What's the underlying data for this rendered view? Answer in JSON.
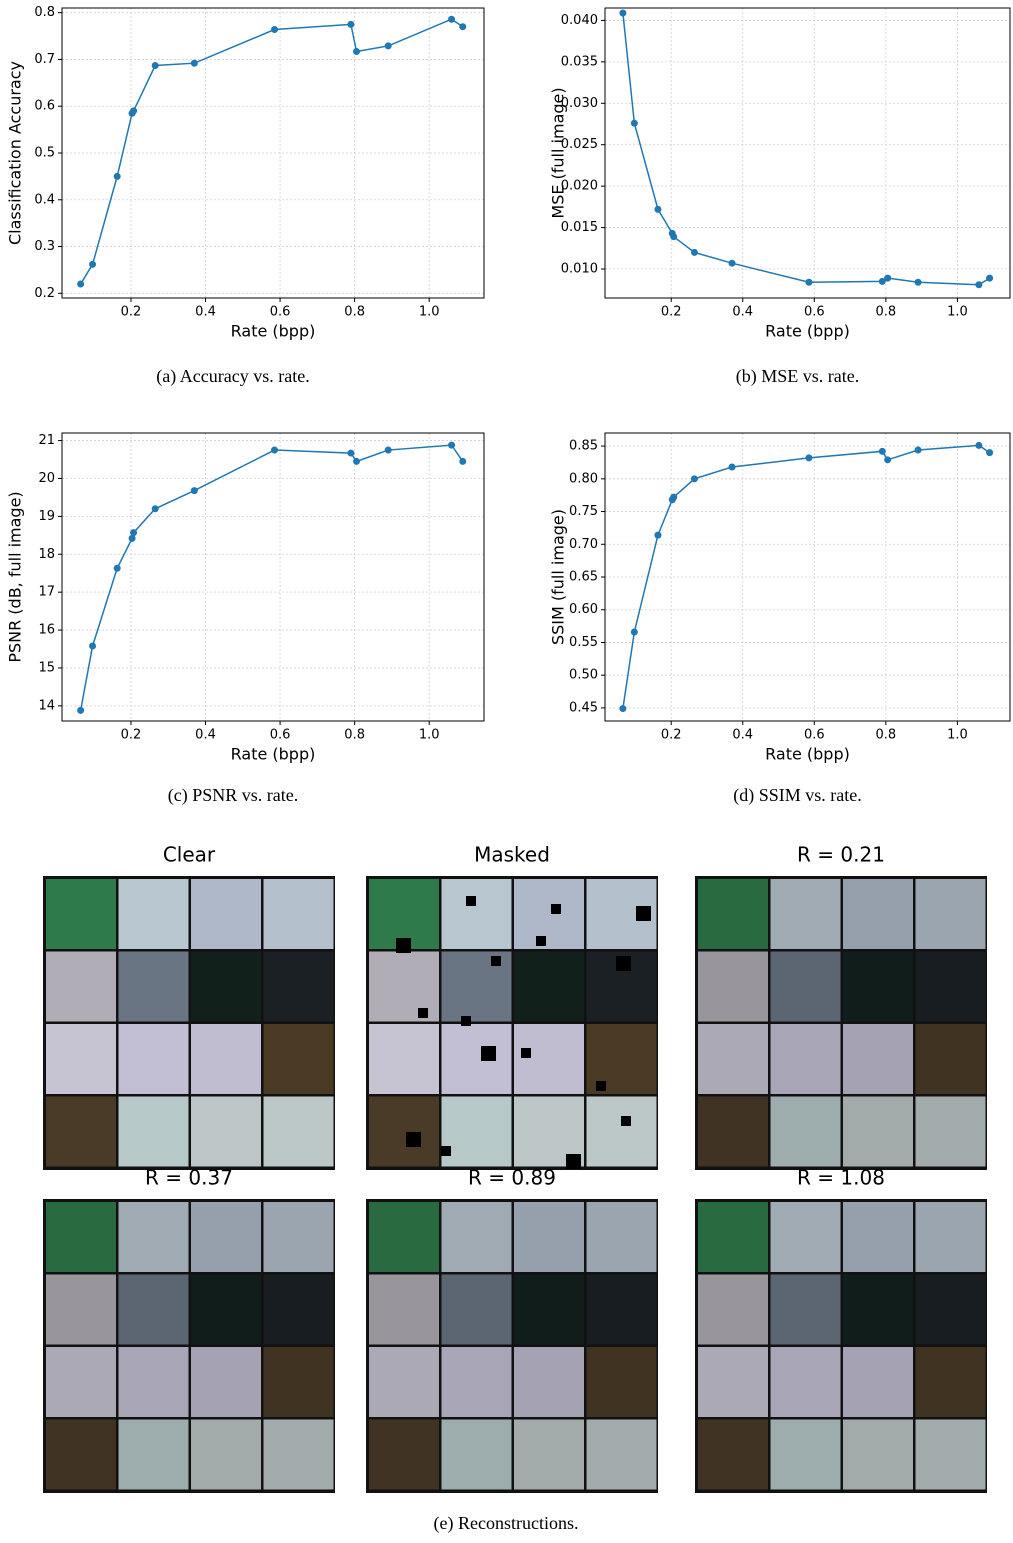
{
  "chart_data": [
    {
      "type": "line",
      "xlabel": "Rate (bpp)",
      "ylabel": "Classification Accuracy",
      "caption": "(a)  Accuracy vs. rate.",
      "color": "#1f77b4",
      "grid": true,
      "x": [
        0.065,
        0.097,
        0.163,
        0.203,
        0.207,
        0.265,
        0.37,
        0.585,
        0.79,
        0.805,
        0.89,
        1.06,
        1.09
      ],
      "values": [
        0.22,
        0.262,
        0.45,
        0.585,
        0.59,
        0.687,
        0.692,
        0.764,
        0.775,
        0.717,
        0.729,
        0.786,
        0.77
      ],
      "xlim": [
        0.015,
        1.147
      ],
      "ylim": [
        0.19,
        0.81
      ],
      "xticks": [
        0.2,
        0.4,
        0.6,
        0.8,
        {
          "value": 1.0,
          "label": "1.0"
        }
      ],
      "yticks": [
        0.2,
        0.3,
        0.4,
        0.5,
        0.6,
        0.7,
        0.8
      ]
    },
    {
      "type": "line",
      "xlabel": "Rate (bpp)",
      "ylabel": "MSE (full image)",
      "caption": "(b)  MSE vs. rate.",
      "color": "#1f77b4",
      "grid": true,
      "x": [
        0.065,
        0.097,
        0.163,
        0.203,
        0.207,
        0.265,
        0.37,
        0.585,
        0.79,
        0.805,
        0.89,
        1.06,
        1.09
      ],
      "values": [
        0.0409,
        0.0276,
        0.0172,
        0.0143,
        0.0139,
        0.012,
        0.0107,
        0.0084,
        0.0085,
        0.0089,
        0.0084,
        0.0081,
        0.0089
      ],
      "xlim": [
        0.015,
        1.147
      ],
      "ylim": [
        0.0065,
        0.0415
      ],
      "xticks": [
        0.2,
        0.4,
        0.6,
        0.8,
        {
          "value": 1.0,
          "label": "1.0"
        }
      ],
      "yticks": [
        {
          "value": 0.01,
          "label": "0.010"
        },
        {
          "value": 0.015,
          "label": "0.015"
        },
        {
          "value": 0.02,
          "label": "0.020"
        },
        {
          "value": 0.025,
          "label": "0.025"
        },
        {
          "value": 0.03,
          "label": "0.030"
        },
        {
          "value": 0.035,
          "label": "0.035"
        },
        {
          "value": 0.04,
          "label": "0.040"
        }
      ]
    },
    {
      "type": "line",
      "xlabel": "Rate (bpp)",
      "ylabel": "PSNR (dB, full image)",
      "caption": "(c)  PSNR vs. rate.",
      "color": "#1f77b4",
      "grid": true,
      "x": [
        0.065,
        0.097,
        0.163,
        0.203,
        0.207,
        0.265,
        0.37,
        0.585,
        0.79,
        0.805,
        0.89,
        1.06,
        1.09
      ],
      "values": [
        13.88,
        15.58,
        17.63,
        18.42,
        18.57,
        19.2,
        19.68,
        20.75,
        20.67,
        20.45,
        20.75,
        20.88,
        20.45
      ],
      "xlim": [
        0.015,
        1.147
      ],
      "ylim": [
        13.6,
        21.2
      ],
      "xticks": [
        0.2,
        0.4,
        0.6,
        0.8,
        {
          "value": 1.0,
          "label": "1.0"
        }
      ],
      "yticks": [
        14,
        15,
        16,
        17,
        18,
        19,
        20,
        21
      ]
    },
    {
      "type": "line",
      "xlabel": "Rate (bpp)",
      "ylabel": "SSIM (full image)",
      "caption": "(d)  SSIM vs. rate.",
      "color": "#1f77b4",
      "grid": true,
      "x": [
        0.065,
        0.097,
        0.163,
        0.203,
        0.207,
        0.265,
        0.37,
        0.585,
        0.79,
        0.805,
        0.89,
        1.06,
        1.09
      ],
      "values": [
        0.449,
        0.566,
        0.714,
        0.768,
        0.772,
        0.8,
        0.818,
        0.832,
        0.842,
        0.829,
        0.844,
        0.851,
        0.84
      ],
      "xlim": [
        0.015,
        1.147
      ],
      "ylim": [
        0.43,
        0.87
      ],
      "xticks": [
        0.2,
        0.4,
        0.6,
        0.8,
        {
          "value": 1.0,
          "label": "1.0"
        }
      ],
      "yticks": [
        0.45,
        {
          "value": 0.5,
          "label": "0.50"
        },
        0.55,
        {
          "value": 0.6,
          "label": "0.60"
        },
        0.65,
        {
          "value": 0.7,
          "label": "0.70"
        },
        0.75,
        {
          "value": 0.8,
          "label": "0.80"
        },
        0.85
      ]
    }
  ],
  "reconstructions": {
    "panels": [
      "Clear",
      "Masked",
      "R = 0.21",
      "R = 0.37",
      "R = 0.89",
      "R = 1.08"
    ],
    "caption": "(e) Reconstructions."
  }
}
